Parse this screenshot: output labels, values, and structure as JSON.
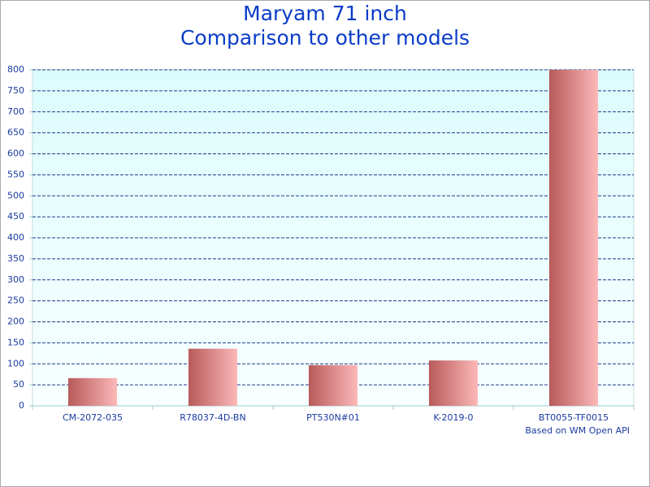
{
  "chart_data": {
    "type": "bar",
    "title": "Maryam 71 inch",
    "subtitle": "Comparison to other models",
    "annotation": "Based on WM Open API",
    "categories": [
      "CM-2072-035",
      "R78037-4D-BN",
      "PT530N#01",
      "K-2019-0",
      "BT0055-TF0015"
    ],
    "values": [
      66,
      136,
      97,
      108,
      800
    ],
    "color": "#b85a5a",
    "ylim": [
      0,
      800
    ],
    "yticks": [
      0,
      50,
      100,
      150,
      200,
      250,
      300,
      350,
      400,
      450,
      500,
      550,
      600,
      650,
      700,
      750,
      800
    ],
    "grid": true
  }
}
